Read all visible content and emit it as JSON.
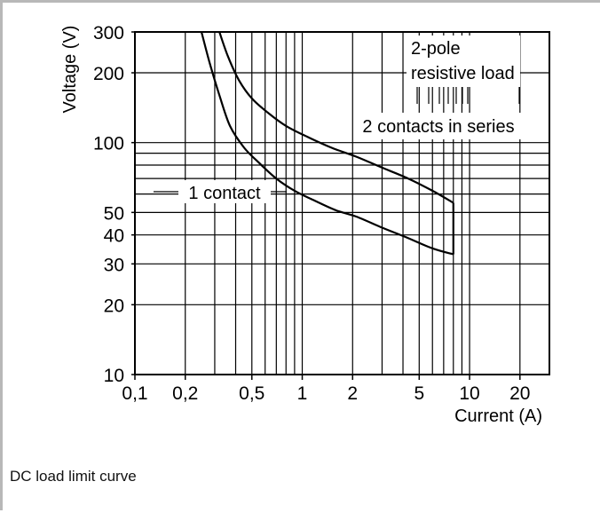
{
  "caption": "DC load limit curve",
  "chart_data": {
    "type": "line",
    "x_scale": "log",
    "y_scale": "log",
    "xlim": [
      0.1,
      30
    ],
    "ylim": [
      10,
      300
    ],
    "xlabel": "Current (A)",
    "ylabel": "Voltage (V)",
    "x_ticks": [
      {
        "value": 0.1,
        "label": "0,1"
      },
      {
        "value": 0.2,
        "label": "0,2"
      },
      {
        "value": 0.5,
        "label": "0,5"
      },
      {
        "value": 1,
        "label": "1"
      },
      {
        "value": 2,
        "label": "2"
      },
      {
        "value": 5,
        "label": "5"
      },
      {
        "value": 10,
        "label": "10"
      },
      {
        "value": 20,
        "label": "20"
      }
    ],
    "y_ticks": [
      {
        "value": 10,
        "label": "10"
      },
      {
        "value": 20,
        "label": "20"
      },
      {
        "value": 30,
        "label": "30"
      },
      {
        "value": 40,
        "label": "40"
      },
      {
        "value": 50,
        "label": "50"
      },
      {
        "value": 100,
        "label": "100"
      },
      {
        "value": 200,
        "label": "200"
      },
      {
        "value": 300,
        "label": "300"
      }
    ],
    "grid": true,
    "series": [
      {
        "name": "1 contact",
        "x": [
          0.25,
          0.28,
          0.32,
          0.37,
          0.45,
          0.55,
          0.7,
          0.9,
          1.2,
          1.6,
          2.1,
          3,
          4.2,
          6,
          8
        ],
        "y": [
          300,
          220,
          160,
          118,
          95,
          82,
          70,
          62,
          56,
          51,
          48,
          43,
          39,
          35,
          33
        ]
      },
      {
        "name": "2 contacts in series",
        "x": [
          0.32,
          0.36,
          0.42,
          0.5,
          0.62,
          0.8,
          1.1,
          1.5,
          2.1,
          3,
          4.3,
          6,
          8
        ],
        "y": [
          300,
          235,
          185,
          155,
          135,
          118,
          105,
          95,
          87,
          78,
          70,
          62,
          55
        ]
      }
    ],
    "vertical_limit": {
      "x": 8,
      "y_range": [
        33,
        55
      ]
    },
    "annotations": [
      {
        "text": "1 contact"
      },
      {
        "text": "2 contacts in series"
      },
      {
        "text": "2-pole"
      },
      {
        "text": "resistive load"
      }
    ]
  }
}
